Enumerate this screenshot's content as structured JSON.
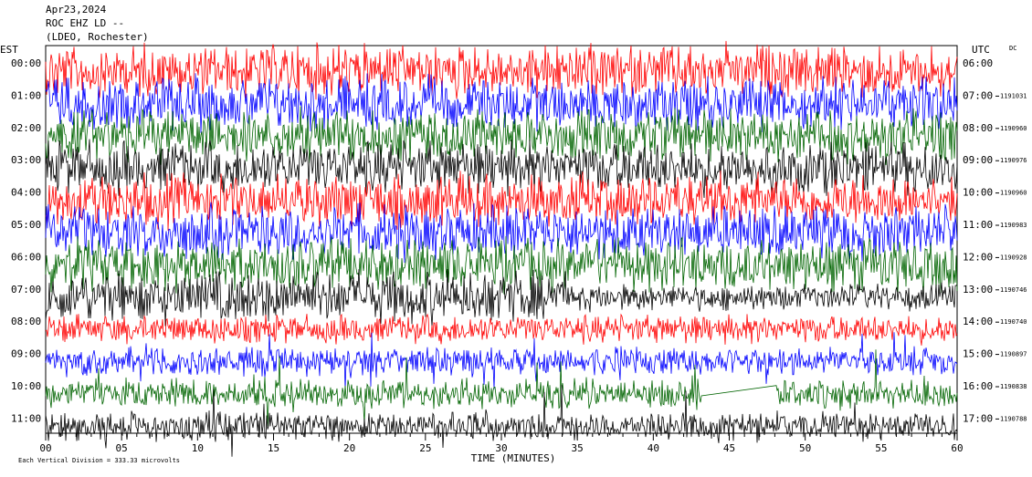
{
  "header": {
    "lines": [
      "Apr23,2024",
      "ROC EHZ LD --",
      "(LDEO, Rochester)"
    ]
  },
  "left_title": "EST",
  "right_title": "UTC",
  "dc_label": "DC",
  "rows": [
    {
      "est": "00:00",
      "utc": "06:00"
    },
    {
      "est": "01:00",
      "utc": "07:00",
      "dc": "1191031"
    },
    {
      "est": "02:00",
      "utc": "08:00",
      "dc": "1190960"
    },
    {
      "est": "03:00",
      "utc": "09:00",
      "dc": "1190976"
    },
    {
      "est": "04:00",
      "utc": "10:00",
      "dc": "1190960"
    },
    {
      "est": "05:00",
      "utc": "11:00",
      "dc": "1190983"
    },
    {
      "est": "06:00",
      "utc": "12:00",
      "dc": "1190928"
    },
    {
      "est": "07:00",
      "utc": "13:00",
      "dc": "1190746"
    },
    {
      "est": "08:00",
      "utc": "14:00",
      "dc": "1190740"
    },
    {
      "est": "09:00",
      "utc": "15:00",
      "dc": "1190897"
    },
    {
      "est": "10:00",
      "utc": "16:00",
      "dc": "1190838"
    },
    {
      "est": "11:00",
      "utc": "17:00",
      "dc": "1190788"
    }
  ],
  "x_ticks": [
    "00",
    "05",
    "10",
    "15",
    "20",
    "25",
    "30",
    "35",
    "40",
    "45",
    "50",
    "55",
    "60"
  ],
  "x_label": "TIME (MINUTES)",
  "footer": "Each Vertical Division =  333.33 microvolts"
}
